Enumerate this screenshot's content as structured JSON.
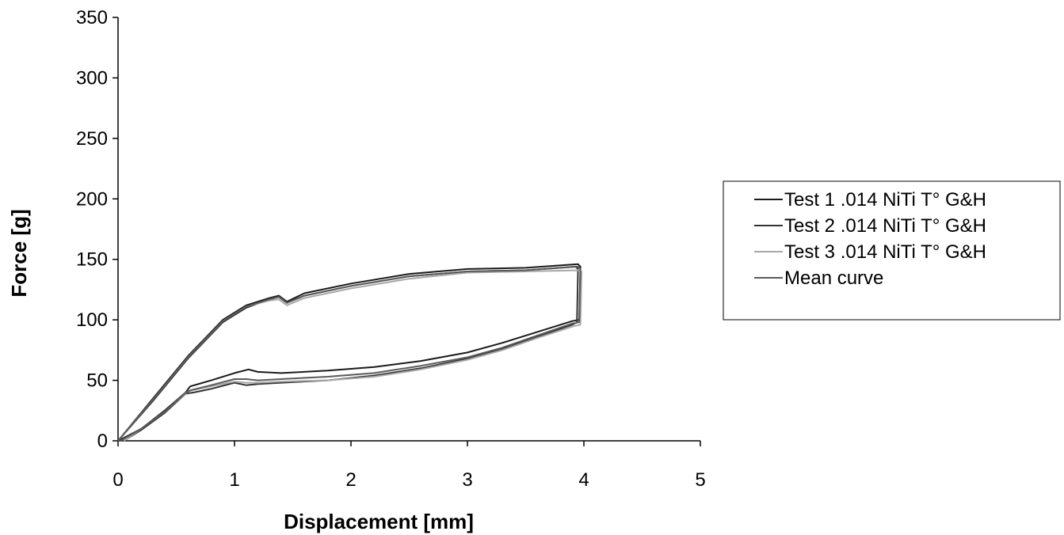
{
  "chart_data": {
    "type": "line",
    "title": "",
    "xlabel": "Displacement [mm]",
    "ylabel": "Force [g]",
    "xlim": [
      0,
      5
    ],
    "ylim": [
      0,
      350
    ],
    "xticks": [
      0,
      1,
      2,
      3,
      4,
      5
    ],
    "yticks": [
      0,
      50,
      100,
      150,
      200,
      250,
      300,
      350
    ],
    "grid": false,
    "legend_position": "right",
    "series": [
      {
        "name": "Test 1 .014 NiTi T° G&H",
        "color": "#1a1a1a",
        "x": [
          0,
          0.3,
          0.6,
          0.9,
          1.1,
          1.3,
          1.38,
          1.45,
          1.6,
          2.0,
          2.5,
          3.0,
          3.5,
          3.95,
          3.97,
          3.96,
          3.9,
          3.6,
          3.3,
          3.0,
          2.6,
          2.2,
          1.8,
          1.4,
          1.2,
          1.12,
          1.0,
          0.8,
          0.62,
          0.58,
          0.4,
          0.2,
          0
        ],
        "y": [
          0,
          35,
          70,
          100,
          112,
          118,
          120,
          115,
          122,
          130,
          138,
          142,
          143,
          146,
          144,
          100,
          99,
          90,
          81,
          73,
          66,
          61,
          58,
          56,
          57,
          59,
          56,
          50,
          45,
          40,
          25,
          10,
          0
        ]
      },
      {
        "name": "Test 2 .014 NiTi T° G&H",
        "color": "#333333",
        "x": [
          0,
          0.3,
          0.6,
          0.9,
          1.1,
          1.3,
          1.38,
          1.45,
          1.6,
          2.0,
          2.5,
          3.0,
          3.5,
          3.93,
          3.95,
          3.94,
          3.9,
          3.6,
          3.3,
          3.0,
          2.6,
          2.2,
          1.8,
          1.4,
          1.2,
          1.1,
          1.0,
          0.8,
          0.65,
          0.58,
          0.4,
          0.2,
          0.05
        ],
        "y": [
          0,
          33,
          68,
          98,
          110,
          117,
          119,
          114,
          120,
          128,
          136,
          140,
          141,
          144,
          142,
          98,
          96,
          86,
          76,
          68,
          60,
          54,
          50,
          48,
          47,
          46,
          48,
          43,
          40,
          39,
          23,
          9,
          0
        ]
      },
      {
        "name": "Test 3 .014 NiTi T° G&H",
        "color": "#a8a8a8",
        "x": [
          0,
          0.3,
          0.6,
          0.9,
          1.1,
          1.3,
          1.38,
          1.45,
          1.6,
          2.0,
          2.5,
          3.0,
          3.5,
          3.96,
          3.98,
          3.97,
          3.92,
          3.6,
          3.3,
          3.0,
          2.6,
          2.2,
          1.8,
          1.4,
          1.2,
          1.1,
          1.0,
          0.8,
          0.65,
          0.6,
          0.4,
          0.2,
          0.05
        ],
        "y": [
          0,
          34,
          69,
          99,
          111,
          116,
          117,
          112,
          118,
          126,
          134,
          139,
          140,
          141,
          140,
          96,
          95,
          85,
          75,
          67,
          59,
          53,
          50,
          49,
          48,
          48,
          49,
          45,
          42,
          41,
          24,
          10,
          0
        ]
      },
      {
        "name": "Mean curve",
        "color": "#5a5a5a",
        "x": [
          0,
          0.3,
          0.6,
          0.9,
          1.1,
          1.3,
          1.38,
          1.45,
          1.6,
          2.0,
          2.5,
          3.0,
          3.5,
          3.95,
          3.97,
          3.96,
          3.9,
          3.6,
          3.3,
          3.0,
          2.6,
          2.2,
          1.8,
          1.4,
          1.2,
          1.1,
          1.0,
          0.8,
          0.63,
          0.58,
          0.4,
          0.2,
          0.02
        ],
        "y": [
          0,
          34,
          69,
          99,
          111,
          117,
          119,
          114,
          120,
          128,
          136,
          140,
          141,
          144,
          142,
          98,
          97,
          87,
          77,
          69,
          62,
          56,
          53,
          51,
          50,
          51,
          51,
          46,
          42,
          40,
          24,
          10,
          0
        ]
      }
    ]
  }
}
